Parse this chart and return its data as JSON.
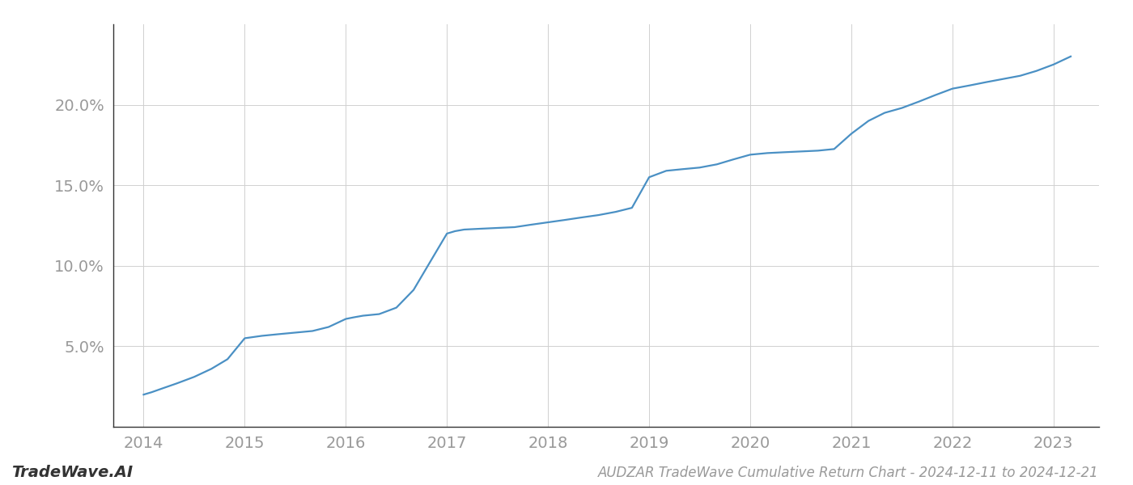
{
  "title": "AUDZAR TradeWave Cumulative Return Chart - 2024-12-11 to 2024-12-21",
  "watermark": "TradeWave.AI",
  "line_color": "#4a90c4",
  "background_color": "#ffffff",
  "grid_color": "#d0d0d0",
  "x_values": [
    2014.0,
    2014.08,
    2014.17,
    2014.33,
    2014.5,
    2014.67,
    2014.83,
    2015.0,
    2015.17,
    2015.33,
    2015.5,
    2015.67,
    2015.83,
    2016.0,
    2016.08,
    2016.17,
    2016.25,
    2016.33,
    2016.5,
    2016.67,
    2016.83,
    2017.0,
    2017.08,
    2017.17,
    2017.33,
    2017.5,
    2017.67,
    2017.83,
    2018.0,
    2018.17,
    2018.33,
    2018.5,
    2018.67,
    2018.83,
    2019.0,
    2019.17,
    2019.33,
    2019.5,
    2019.67,
    2019.83,
    2020.0,
    2020.17,
    2020.33,
    2020.5,
    2020.67,
    2020.83,
    2021.0,
    2021.17,
    2021.33,
    2021.5,
    2021.67,
    2021.83,
    2022.0,
    2022.17,
    2022.33,
    2022.5,
    2022.67,
    2022.83,
    2023.0,
    2023.17
  ],
  "y_values": [
    2.0,
    2.15,
    2.35,
    2.7,
    3.1,
    3.6,
    4.2,
    5.5,
    5.65,
    5.75,
    5.85,
    5.95,
    6.2,
    6.7,
    6.8,
    6.9,
    6.95,
    7.0,
    7.4,
    8.5,
    10.2,
    12.0,
    12.15,
    12.25,
    12.3,
    12.35,
    12.4,
    12.55,
    12.7,
    12.85,
    13.0,
    13.15,
    13.35,
    13.6,
    15.5,
    15.9,
    16.0,
    16.1,
    16.3,
    16.6,
    16.9,
    17.0,
    17.05,
    17.1,
    17.15,
    17.25,
    18.2,
    19.0,
    19.5,
    19.8,
    20.2,
    20.6,
    21.0,
    21.2,
    21.4,
    21.6,
    21.8,
    22.1,
    22.5,
    23.0
  ],
  "xlim": [
    2013.7,
    2023.45
  ],
  "ylim": [
    0,
    25
  ],
  "yticks": [
    5.0,
    10.0,
    15.0,
    20.0
  ],
  "xticks": [
    2014,
    2015,
    2016,
    2017,
    2018,
    2019,
    2020,
    2021,
    2022,
    2023
  ],
  "line_width": 1.6,
  "title_fontsize": 12,
  "tick_fontsize": 14,
  "watermark_fontsize": 14,
  "label_color": "#999999",
  "spine_color": "#333333"
}
